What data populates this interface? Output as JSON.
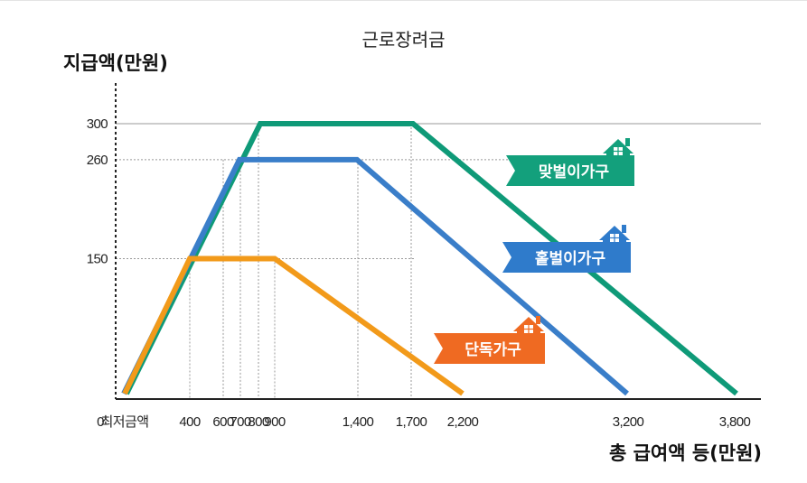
{
  "chart_data": {
    "type": "line",
    "title": "근로장려금",
    "ylabel": "지급액(만원)",
    "xlabel": "총 급여액 등(만원)",
    "x_ticks": [
      "0",
      "최저금액",
      "400",
      "600",
      "700",
      "800",
      "900",
      "1,400",
      "1,700",
      "2,200",
      "3,200",
      "3,800"
    ],
    "y_ticks": [
      "150",
      "260",
      "300"
    ],
    "series": [
      {
        "name": "맞벌이가구",
        "color": "#0f9a78",
        "points": [
          [
            "최저금액",
            0
          ],
          [
            "800",
            300
          ],
          [
            "1,700",
            300
          ],
          [
            "3,800",
            0
          ]
        ]
      },
      {
        "name": "홑벌이가구",
        "color": "#3a7ec9",
        "points": [
          [
            "최저금액",
            0
          ],
          [
            "700",
            260
          ],
          [
            "1,400",
            260
          ],
          [
            "3,200",
            0
          ]
        ]
      },
      {
        "name": "단독가구",
        "color": "#f29a1a",
        "points": [
          [
            "최저금액",
            0
          ],
          [
            "400",
            150
          ],
          [
            "900",
            150
          ],
          [
            "2,200",
            0
          ]
        ]
      }
    ],
    "colors": {
      "badge_맞벌이가구": "#13a07c",
      "badge_홑벌이가구": "#2f7bcb",
      "badge_단독가구": "#ef6a22",
      "grid": "#8a8a8a",
      "axis": "#222222"
    }
  }
}
